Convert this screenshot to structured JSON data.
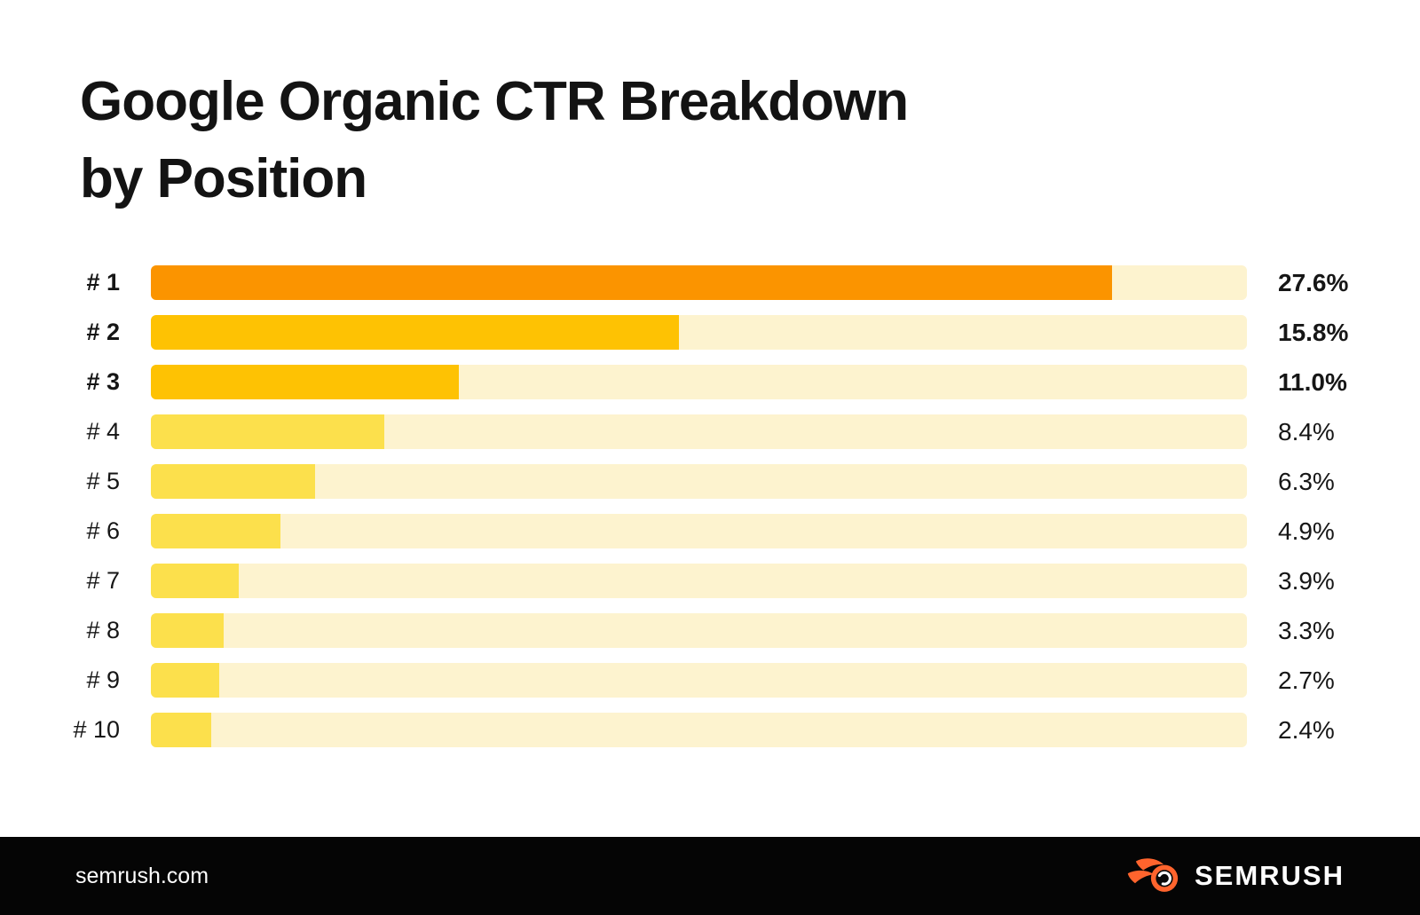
{
  "page": {
    "background": "#ffffff"
  },
  "title": {
    "line1": "Google Organic CTR Breakdown",
    "line2": "by Position"
  },
  "chart_data": {
    "type": "bar",
    "orientation": "horizontal",
    "title": "Google Organic CTR Breakdown by Position",
    "categories": [
      "# 1",
      "# 2",
      "# 3",
      "# 4",
      "# 5",
      "# 6",
      "# 7",
      "# 8",
      "# 9",
      "# 10"
    ],
    "values": [
      27.6,
      15.8,
      11.0,
      8.4,
      6.3,
      4.9,
      3.9,
      3.3,
      2.7,
      2.4
    ],
    "value_suffix": "%",
    "grid": false,
    "legend": "none",
    "track_color": "#fdf3cf",
    "palette": {
      "rank1": "#fb9400",
      "rank2_3": "#fec203",
      "rank4_10": "#fce04c"
    },
    "rows": [
      {
        "label": "# 1",
        "value": 27.6,
        "value_label": "27.6%",
        "fill_pct": 87.7,
        "color": "#fb9400",
        "emphasis": true
      },
      {
        "label": "# 2",
        "value": 15.8,
        "value_label": "15.8%",
        "fill_pct": 48.2,
        "color": "#fec203",
        "emphasis": true
      },
      {
        "label": "# 3",
        "value": 11.0,
        "value_label": "11.0%",
        "fill_pct": 28.1,
        "color": "#fec203",
        "emphasis": true
      },
      {
        "label": "# 4",
        "value": 8.4,
        "value_label": "8.4%",
        "fill_pct": 21.3,
        "color": "#fce04c",
        "emphasis": false
      },
      {
        "label": "# 5",
        "value": 6.3,
        "value_label": "6.3%",
        "fill_pct": 15.0,
        "color": "#fce04c",
        "emphasis": false
      },
      {
        "label": "# 6",
        "value": 4.9,
        "value_label": "4.9%",
        "fill_pct": 11.8,
        "color": "#fce04c",
        "emphasis": false
      },
      {
        "label": "# 7",
        "value": 3.9,
        "value_label": "3.9%",
        "fill_pct": 8.0,
        "color": "#fce04c",
        "emphasis": false
      },
      {
        "label": "# 8",
        "value": 3.3,
        "value_label": "3.3%",
        "fill_pct": 6.6,
        "color": "#fce04c",
        "emphasis": false
      },
      {
        "label": "# 9",
        "value": 2.7,
        "value_label": "2.7%",
        "fill_pct": 6.2,
        "color": "#fce04c",
        "emphasis": false
      },
      {
        "label": "# 10",
        "value": 2.4,
        "value_label": "2.4%",
        "fill_pct": 5.5,
        "color": "#fce04c",
        "emphasis": false
      }
    ]
  },
  "footer": {
    "background": "#050505",
    "site": "semrush.com",
    "brand": "SEMRUSH",
    "brand_accent": "#ff642d"
  }
}
